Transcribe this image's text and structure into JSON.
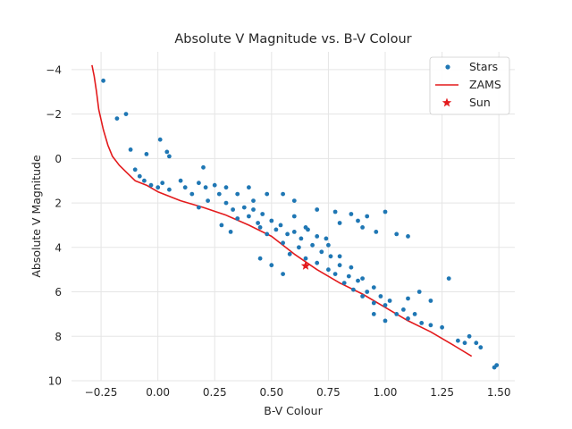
{
  "chart_data": {
    "type": "scatter",
    "title": "Absolute V Magnitude vs. B-V Colour",
    "xlabel": "B-V Colour",
    "ylabel": "Absolute V Magnitude",
    "xlim": [
      -0.38,
      1.57
    ],
    "ylim": [
      10,
      -4.8
    ],
    "y_inverted": true,
    "grid": true,
    "xticks": [
      -0.25,
      0.0,
      0.25,
      0.5,
      0.75,
      1.0,
      1.25,
      1.5
    ],
    "xtick_labels": [
      "−0.25",
      "0.00",
      "0.25",
      "0.50",
      "0.75",
      "1.00",
      "1.25",
      "1.50"
    ],
    "yticks": [
      -4,
      -2,
      0,
      2,
      4,
      6,
      8,
      10
    ],
    "ytick_labels": [
      "−4",
      "−2",
      "0",
      "2",
      "4",
      "6",
      "8",
      "10"
    ],
    "legend": {
      "placement": "top-right",
      "entries": [
        "Stars",
        "ZAMS",
        "Sun"
      ]
    },
    "colors": {
      "stars": "#1f77b4",
      "zams": "#e31a1c",
      "sun": "#e31a1c",
      "background": "#ffffff",
      "grid": "#e5e5e5"
    },
    "series": [
      {
        "name": "Stars",
        "style": "scatter",
        "note_points": "representative sample of the dense cloud",
        "points": [
          [
            -0.24,
            -3.5
          ],
          [
            -0.14,
            -2.0
          ],
          [
            -0.18,
            -1.8
          ],
          [
            -0.12,
            -0.4
          ],
          [
            -0.05,
            -0.2
          ],
          [
            0.01,
            -0.85
          ],
          [
            0.04,
            -0.3
          ],
          [
            -0.1,
            0.5
          ],
          [
            -0.08,
            0.8
          ],
          [
            -0.06,
            1.0
          ],
          [
            -0.03,
            1.2
          ],
          [
            0.0,
            1.3
          ],
          [
            0.02,
            1.1
          ],
          [
            0.05,
            1.4
          ],
          [
            0.1,
            1.0
          ],
          [
            0.12,
            1.3
          ],
          [
            0.15,
            1.6
          ],
          [
            0.18,
            1.1
          ],
          [
            0.21,
            1.3
          ],
          [
            0.22,
            1.9
          ],
          [
            0.25,
            1.2
          ],
          [
            0.27,
            1.6
          ],
          [
            0.3,
            2.0
          ],
          [
            0.33,
            2.3
          ],
          [
            0.35,
            2.7
          ],
          [
            0.38,
            2.2
          ],
          [
            0.4,
            2.6
          ],
          [
            0.42,
            2.3
          ],
          [
            0.44,
            2.9
          ],
          [
            0.45,
            3.1
          ],
          [
            0.46,
            2.5
          ],
          [
            0.48,
            3.4
          ],
          [
            0.5,
            2.8
          ],
          [
            0.52,
            3.2
          ],
          [
            0.54,
            3.0
          ],
          [
            0.55,
            3.8
          ],
          [
            0.57,
            3.4
          ],
          [
            0.58,
            4.3
          ],
          [
            0.6,
            3.3
          ],
          [
            0.62,
            4.0
          ],
          [
            0.63,
            3.6
          ],
          [
            0.65,
            4.5
          ],
          [
            0.66,
            3.2
          ],
          [
            0.68,
            3.9
          ],
          [
            0.7,
            4.7
          ],
          [
            0.72,
            4.2
          ],
          [
            0.74,
            3.6
          ],
          [
            0.75,
            5.0
          ],
          [
            0.76,
            4.4
          ],
          [
            0.78,
            5.2
          ],
          [
            0.8,
            4.8
          ],
          [
            0.82,
            5.6
          ],
          [
            0.84,
            5.3
          ],
          [
            0.86,
            5.9
          ],
          [
            0.88,
            5.5
          ],
          [
            0.9,
            6.2
          ],
          [
            0.92,
            6.0
          ],
          [
            0.95,
            6.5
          ],
          [
            0.98,
            6.2
          ],
          [
            1.0,
            6.6
          ],
          [
            1.02,
            6.4
          ],
          [
            1.05,
            7.0
          ],
          [
            1.08,
            6.8
          ],
          [
            1.1,
            7.2
          ],
          [
            1.13,
            7.0
          ],
          [
            1.16,
            7.4
          ],
          [
            1.2,
            7.5
          ],
          [
            1.25,
            7.6
          ],
          [
            1.28,
            5.4
          ],
          [
            1.32,
            8.2
          ],
          [
            1.35,
            8.3
          ],
          [
            1.37,
            8.0
          ],
          [
            1.4,
            8.3
          ],
          [
            1.42,
            8.5
          ],
          [
            1.48,
            9.4
          ],
          [
            1.49,
            9.3
          ],
          [
            0.05,
            -0.1
          ],
          [
            0.2,
            0.4
          ],
          [
            0.35,
            1.6
          ],
          [
            0.4,
            1.3
          ],
          [
            0.48,
            1.6
          ],
          [
            0.55,
            1.6
          ],
          [
            0.6,
            1.9
          ],
          [
            0.7,
            2.3
          ],
          [
            0.78,
            2.4
          ],
          [
            0.8,
            2.9
          ],
          [
            0.85,
            2.5
          ],
          [
            0.88,
            2.8
          ],
          [
            0.9,
            3.1
          ],
          [
            0.92,
            2.6
          ],
          [
            0.96,
            3.3
          ],
          [
            1.0,
            2.4
          ],
          [
            1.05,
            3.4
          ],
          [
            1.1,
            3.5
          ],
          [
            0.18,
            2.2
          ],
          [
            0.28,
            3.0
          ],
          [
            0.32,
            3.3
          ],
          [
            0.45,
            4.5
          ],
          [
            0.5,
            4.8
          ],
          [
            0.55,
            5.2
          ],
          [
            1.0,
            7.3
          ],
          [
            0.95,
            7.0
          ],
          [
            1.1,
            6.3
          ],
          [
            1.2,
            6.4
          ],
          [
            1.15,
            6.0
          ],
          [
            0.3,
            1.3
          ],
          [
            0.42,
            1.9
          ],
          [
            0.6,
            2.6
          ],
          [
            0.65,
            3.1
          ],
          [
            0.7,
            3.5
          ],
          [
            0.75,
            3.9
          ],
          [
            0.8,
            4.4
          ],
          [
            0.85,
            4.9
          ],
          [
            0.9,
            5.4
          ],
          [
            0.95,
            5.8
          ]
        ]
      },
      {
        "name": "ZAMS",
        "style": "line",
        "points": [
          [
            -0.29,
            -4.2
          ],
          [
            -0.28,
            -3.7
          ],
          [
            -0.27,
            -3.0
          ],
          [
            -0.26,
            -2.2
          ],
          [
            -0.24,
            -1.3
          ],
          [
            -0.22,
            -0.6
          ],
          [
            -0.2,
            -0.1
          ],
          [
            -0.17,
            0.3
          ],
          [
            -0.14,
            0.6
          ],
          [
            -0.1,
            1.0
          ],
          [
            -0.05,
            1.2
          ],
          [
            0.0,
            1.5
          ],
          [
            0.1,
            1.9
          ],
          [
            0.2,
            2.2
          ],
          [
            0.3,
            2.55
          ],
          [
            0.4,
            3.0
          ],
          [
            0.5,
            3.5
          ],
          [
            0.6,
            4.3
          ],
          [
            0.7,
            5.0
          ],
          [
            0.8,
            5.6
          ],
          [
            0.9,
            6.1
          ],
          [
            1.0,
            6.7
          ],
          [
            1.1,
            7.3
          ],
          [
            1.2,
            7.8
          ],
          [
            1.3,
            8.4
          ],
          [
            1.38,
            8.9
          ]
        ]
      },
      {
        "name": "Sun",
        "style": "star-marker",
        "points": [
          [
            0.65,
            4.83
          ]
        ]
      }
    ]
  }
}
